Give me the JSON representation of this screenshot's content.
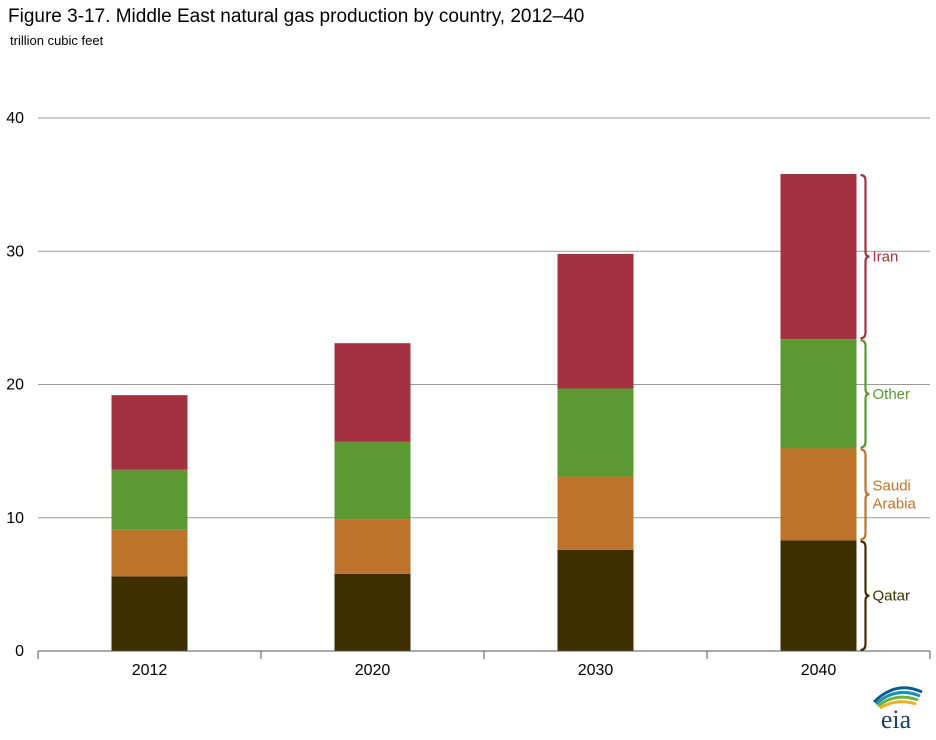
{
  "chart_data": {
    "type": "bar",
    "stacked": true,
    "title": "Figure 3-17. Middle East natural gas production by country, 2012–40",
    "subtitle": "trillion cubic feet",
    "xlabel": "",
    "ylabel": "",
    "ylim": [
      0,
      40
    ],
    "yticks": [
      0,
      10,
      20,
      30,
      40
    ],
    "grid": true,
    "legend": "right-side brackets",
    "categories": [
      "2012",
      "2020",
      "2030",
      "2040"
    ],
    "series": [
      {
        "name": "Qatar",
        "label_lines": [
          "Qatar"
        ],
        "color": "#3d2f00",
        "values": [
          5.6,
          5.8,
          7.6,
          8.3
        ]
      },
      {
        "name": "Saudi Arabia",
        "label_lines": [
          "Saudi",
          "Arabia"
        ],
        "color": "#bd742a",
        "values": [
          3.5,
          4.1,
          5.5,
          6.9
        ]
      },
      {
        "name": "Other",
        "label_lines": [
          "Other"
        ],
        "color": "#5b9a32",
        "values": [
          4.5,
          5.8,
          6.6,
          8.2
        ]
      },
      {
        "name": "Iran",
        "label_lines": [
          "Iran"
        ],
        "color": "#a43140",
        "values": [
          5.6,
          7.4,
          10.1,
          12.4
        ]
      }
    ]
  },
  "logo": {
    "text": "eia"
  }
}
